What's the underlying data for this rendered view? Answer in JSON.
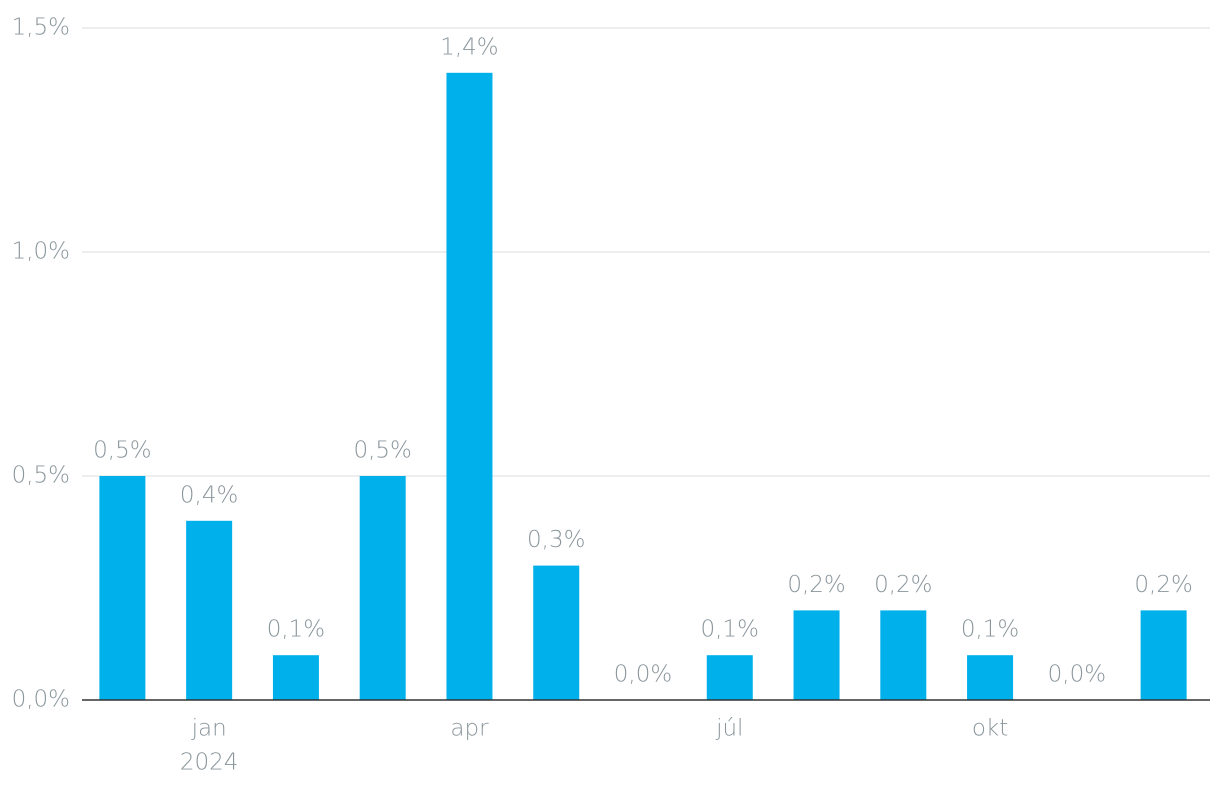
{
  "chart_data": {
    "type": "bar",
    "categories": [
      null,
      "jan",
      null,
      null,
      "apr",
      null,
      null,
      "júl",
      null,
      null,
      "okt",
      null,
      null
    ],
    "x_secondary_labels": [
      null,
      "2024",
      null,
      null,
      null,
      null,
      null,
      null,
      null,
      null,
      null,
      null,
      null
    ],
    "values": [
      0.5,
      0.4,
      0.1,
      0.5,
      1.4,
      0.3,
      0.0,
      0.1,
      0.2,
      0.2,
      0.1,
      0.0,
      0.2
    ],
    "value_labels": [
      "0,5%",
      "0,4%",
      "0,1%",
      "0,5%",
      "1,4%",
      "0,3%",
      "0,0%",
      "0,1%",
      "0,2%",
      "0,2%",
      "0,1%",
      "0,0%",
      "0,2%"
    ],
    "color": "#00b0ea",
    "ylim": [
      0,
      1.5
    ],
    "yticks": [
      {
        "value": 0,
        "label": "0,0%"
      },
      {
        "value": 0.5,
        "label": "0,5%"
      },
      {
        "value": 1.0,
        "label": "1,0%"
      },
      {
        "value": 1.5,
        "label": "1,5%"
      }
    ],
    "grid": true
  }
}
